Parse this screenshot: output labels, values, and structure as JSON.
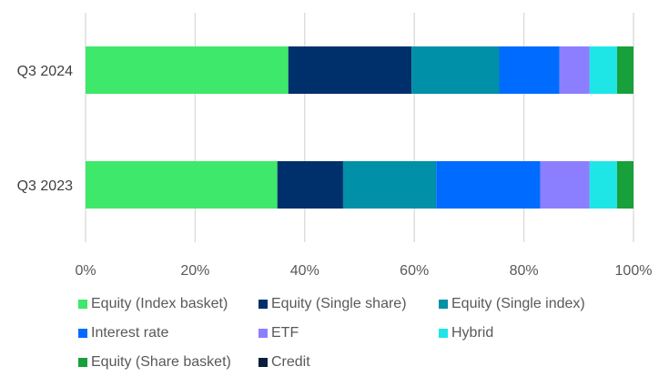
{
  "chart_data": {
    "type": "bar",
    "orientation": "horizontal",
    "stacked": true,
    "normalized": true,
    "categories": [
      "Q3 2024",
      "Q3 2023"
    ],
    "series": [
      {
        "name": "Equity (Index basket)",
        "color": "#3de86a",
        "values": [
          37,
          35
        ]
      },
      {
        "name": "Equity (Single share)",
        "color": "#00306b",
        "values": [
          22.5,
          12
        ]
      },
      {
        "name": "Equity (Single index)",
        "color": "#0090a8",
        "values": [
          16,
          17
        ]
      },
      {
        "name": "Interest rate",
        "color": "#006bff",
        "values": [
          11,
          19
        ]
      },
      {
        "name": "ETF",
        "color": "#8c7fff",
        "values": [
          5.5,
          9
        ]
      },
      {
        "name": "Hybrid",
        "color": "#1ee6e6",
        "values": [
          5,
          5
        ]
      },
      {
        "name": "Equity (Share basket)",
        "color": "#18a03a",
        "values": [
          3,
          3
        ]
      },
      {
        "name": "Credit",
        "color": "#0a1f3c",
        "values": [
          0,
          0
        ]
      }
    ],
    "x_ticks": [
      "0%",
      "20%",
      "40%",
      "60%",
      "80%",
      "100%"
    ],
    "xlim": [
      0,
      100
    ],
    "grid": true,
    "legend_position": "bottom"
  }
}
